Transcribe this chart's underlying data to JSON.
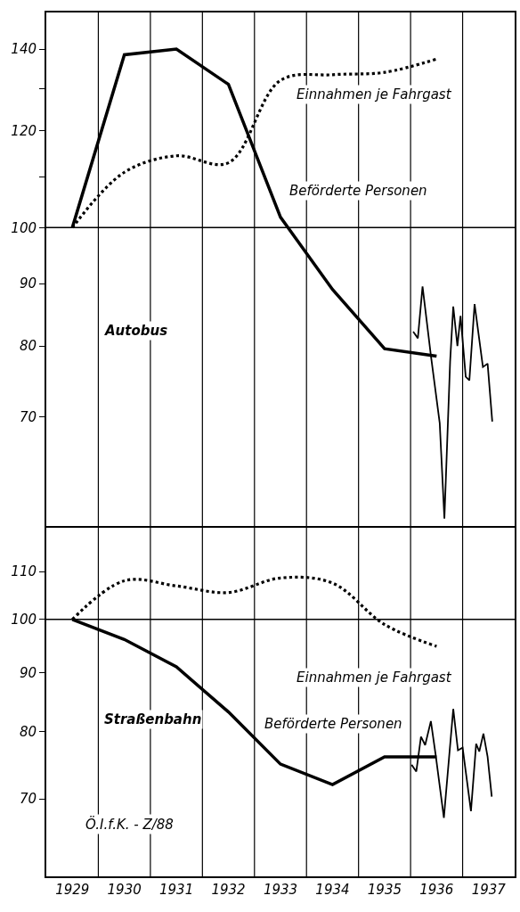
{
  "chart_data": [
    {
      "type": "line",
      "annotations": [
        "Autobus"
      ],
      "log": "y",
      "tick_labels": "y",
      "grid": false,
      "legend": false,
      "marker": "none",
      "xlim": [
        1928.5,
        1937.5
      ],
      "xticks": [
        1929,
        1930,
        1931,
        1932,
        1933,
        1934,
        1935,
        1936,
        1937
      ],
      "ylim": [
        57,
        150
      ],
      "yticks": [
        70,
        80,
        90,
        100,
        {
          "value": 110,
          "label": null
        },
        120,
        {
          "value": 130,
          "label": null
        },
        140
      ],
      "ref_lines": [
        {
          "axis": "y",
          "value": 100
        },
        {
          "axis": "x",
          "value": 1929.5
        },
        {
          "axis": "x",
          "value": 1930.5
        },
        {
          "axis": "x",
          "value": 1931.5
        },
        {
          "axis": "x",
          "value": 1932.5
        },
        {
          "axis": "x",
          "value": 1933.5
        },
        {
          "axis": "x",
          "value": 1934.5
        },
        {
          "axis": "x",
          "value": 1935.5
        },
        {
          "axis": "x",
          "value": 1936.5
        }
      ],
      "series": [
        {
          "name": "Beförderte Personen",
          "color": "#000000",
          "line_style": "solid",
          "x": [
            1929,
            1930,
            1931,
            1932,
            1933,
            1934,
            1935,
            1936
          ],
          "values": [
            100,
            138.5,
            140,
            131,
            102,
            89,
            79.6,
            78.5
          ]
        },
        {
          "name": "Einnahmen je Fahrgast",
          "color": "#000000",
          "line_style": "dotted",
          "x": [
            1929,
            1930,
            1931,
            1932,
            1933,
            1934,
            1935,
            1936
          ],
          "values": [
            100,
            111,
            114.5,
            113,
            132,
            133.4,
            134,
            137.4
          ]
        },
        {
          "color": "#000000",
          "line_style": "solid",
          "x": [
            1935.55,
            1935.64,
            1935.73,
            1935.89,
            1936.06,
            1936.15,
            1936.26,
            1936.32,
            1936.4,
            1936.46,
            1936.56,
            1936.63,
            1936.73,
            1936.89,
            1936.98,
            1937.07
          ],
          "values": [
            82.2,
            81.2,
            89.5,
            78.6,
            69.2,
            57.8,
            77.7,
            86.2,
            80,
            84.7,
            75.5,
            75,
            86.6,
            76.9,
            77.4,
            69.4
          ]
        }
      ]
    },
    {
      "type": "line",
      "annotations": [
        "Straßenbahn",
        "Ö.I.f.K. - Z/88"
      ],
      "log": "y",
      "grid": false,
      "legend": false,
      "marker": "none",
      "xlim": [
        1928.5,
        1937.5
      ],
      "xticks": [
        1929,
        1930,
        1931,
        1932,
        1933,
        1934,
        1935,
        1936,
        1937
      ],
      "ylim": [
        60,
        120
      ],
      "yticks": [
        70,
        80,
        90,
        100,
        110
      ],
      "ref_lines": [
        {
          "axis": "y",
          "value": 100
        },
        {
          "axis": "x",
          "value": 1929.5
        },
        {
          "axis": "x",
          "value": 1930.5
        },
        {
          "axis": "x",
          "value": 1931.5
        },
        {
          "axis": "x",
          "value": 1932.5
        },
        {
          "axis": "x",
          "value": 1933.5
        },
        {
          "axis": "x",
          "value": 1934.5
        },
        {
          "axis": "x",
          "value": 1935.5
        },
        {
          "axis": "x",
          "value": 1936.5
        }
      ],
      "series": [
        {
          "name": "Beförderte Personen",
          "color": "#000000",
          "line_style": "solid",
          "x": [
            1929,
            1930,
            1931,
            1932,
            1933,
            1934,
            1935,
            1936
          ],
          "values": [
            100,
            96.1,
            91,
            83.2,
            75,
            72,
            76.1,
            76.1
          ]
        },
        {
          "name": "Einnahmen je Fahrgast",
          "color": "#000000",
          "line_style": "dotted",
          "x": [
            1929,
            1930,
            1931,
            1932,
            1933,
            1934,
            1935,
            1936
          ],
          "values": [
            100,
            108,
            106.9,
            105.5,
            108.6,
            107.5,
            99,
            94.8
          ]
        },
        {
          "color": "#000000",
          "line_style": "solid",
          "x": [
            1935.52,
            1935.61,
            1935.7,
            1935.78,
            1935.89,
            1935.98,
            1936.14,
            1936.32,
            1936.41,
            1936.5,
            1936.66,
            1936.76,
            1936.82,
            1936.9,
            1936.98,
            1937.06
          ],
          "values": [
            74.9,
            73.9,
            79.2,
            77.9,
            81.7,
            76.5,
            67.4,
            83.7,
            77.1,
            77.5,
            68.3,
            78.1,
            76.9,
            79.7,
            76.1,
            70.3
          ]
        }
      ]
    }
  ]
}
